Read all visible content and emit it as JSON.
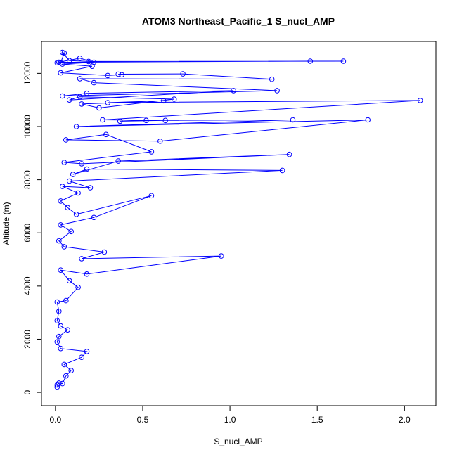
{
  "chart_data": {
    "type": "line",
    "title": "ATOM3 Northeast_Pacific_1 S_nucl_AMP",
    "xlabel": "S_nucl_AMP",
    "ylabel": "Altitude (m)",
    "xlim": [
      -0.08,
      2.18
    ],
    "ylim": [
      -500,
      13200
    ],
    "xticks": [
      0.0,
      0.5,
      1.0,
      1.5,
      2.0
    ],
    "yticks": [
      0,
      2000,
      4000,
      6000,
      8000,
      10000,
      12000
    ],
    "xtick_labels": [
      "0.0",
      "0.5",
      "1.0",
      "1.5",
      "2.0"
    ],
    "ytick_labels": [
      "0",
      "2000",
      "4000",
      "6000",
      "8000",
      "10000",
      "12000"
    ],
    "color": "#0000ff",
    "marker": "open-circle",
    "grid": false,
    "series": [
      {
        "points": [
          [
            0.01,
            200
          ],
          [
            0.01,
            280
          ],
          [
            0.02,
            350
          ],
          [
            0.04,
            330
          ],
          [
            0.06,
            620
          ],
          [
            0.09,
            820
          ],
          [
            0.05,
            1050
          ],
          [
            0.15,
            1320
          ],
          [
            0.18,
            1540
          ],
          [
            0.03,
            1650
          ],
          [
            0.01,
            1900
          ],
          [
            0.02,
            2100
          ],
          [
            0.07,
            2350
          ],
          [
            0.03,
            2500
          ],
          [
            0.01,
            2700
          ],
          [
            0.02,
            3050
          ],
          [
            0.01,
            3400
          ],
          [
            0.06,
            3450
          ],
          [
            0.13,
            3950
          ],
          [
            0.08,
            4200
          ],
          [
            0.03,
            4600
          ],
          [
            0.18,
            4450
          ],
          [
            0.95,
            5130
          ],
          [
            0.15,
            5030
          ],
          [
            0.28,
            5280
          ],
          [
            0.05,
            5480
          ],
          [
            0.02,
            5700
          ],
          [
            0.09,
            6050
          ],
          [
            0.03,
            6300
          ],
          [
            0.22,
            6580
          ],
          [
            0.55,
            7400
          ],
          [
            0.12,
            6700
          ],
          [
            0.07,
            6950
          ],
          [
            0.03,
            7200
          ],
          [
            0.13,
            7500
          ],
          [
            0.04,
            7750
          ],
          [
            0.2,
            7700
          ],
          [
            0.08,
            7950
          ],
          [
            1.3,
            8350
          ],
          [
            0.18,
            8400
          ],
          [
            0.1,
            8200
          ],
          [
            0.36,
            8700
          ],
          [
            1.34,
            8950
          ],
          [
            0.15,
            8600
          ],
          [
            0.05,
            8650
          ],
          [
            0.55,
            9050
          ],
          [
            0.29,
            9700
          ],
          [
            0.06,
            9500
          ],
          [
            0.6,
            9450
          ],
          [
            1.79,
            10250
          ],
          [
            0.12,
            10000
          ],
          [
            1.36,
            10250
          ],
          [
            0.52,
            10230
          ],
          [
            0.37,
            10200
          ],
          [
            0.63,
            10230
          ],
          [
            0.27,
            10250
          ],
          [
            2.09,
            10980
          ],
          [
            0.3,
            10900
          ],
          [
            0.62,
            10970
          ],
          [
            0.15,
            10850
          ],
          [
            0.25,
            10700
          ],
          [
            0.68,
            11030
          ],
          [
            0.14,
            11120
          ],
          [
            0.08,
            11000
          ],
          [
            1.02,
            11350
          ],
          [
            0.18,
            11250
          ],
          [
            0.04,
            11150
          ],
          [
            1.27,
            11350
          ],
          [
            0.22,
            11650
          ],
          [
            0.14,
            11800
          ],
          [
            1.24,
            11780
          ],
          [
            0.73,
            11980
          ],
          [
            0.36,
            11970
          ],
          [
            0.38,
            11950
          ],
          [
            0.3,
            11920
          ],
          [
            0.03,
            12020
          ],
          [
            0.21,
            12270
          ],
          [
            0.04,
            12350
          ],
          [
            0.22,
            12420
          ],
          [
            0.14,
            12570
          ],
          [
            0.02,
            12420
          ],
          [
            1.46,
            12460
          ],
          [
            1.65,
            12460
          ],
          [
            0.19,
            12450
          ],
          [
            0.08,
            12480
          ],
          [
            0.04,
            12790
          ],
          [
            0.05,
            12760
          ],
          [
            0.03,
            12400
          ],
          [
            0.01,
            12400
          ]
        ]
      }
    ]
  }
}
